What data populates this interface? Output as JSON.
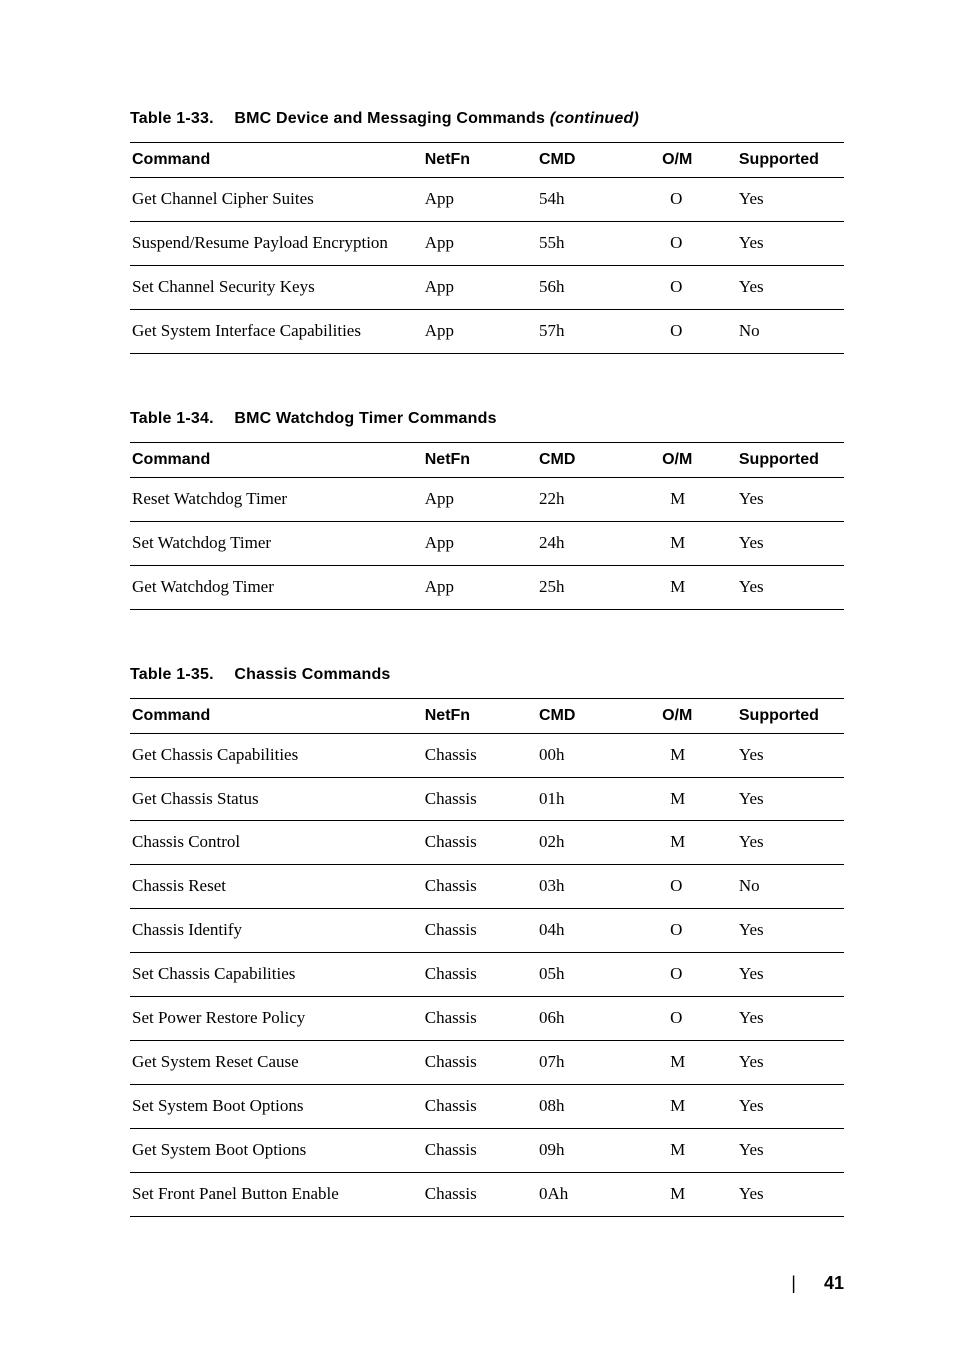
{
  "tables": [
    {
      "number": "Table 1-33.",
      "title": "BMC Device and Messaging Commands",
      "continued": "(continued)",
      "columns": [
        "Command",
        "NetFn",
        "CMD",
        "O/M",
        "Supported"
      ],
      "rows": [
        [
          "Get Channel Cipher Suites",
          "App",
          "54h",
          "O",
          "Yes"
        ],
        [
          "Suspend/Resume Payload Encryption",
          "App",
          "55h",
          "O",
          "Yes"
        ],
        [
          "Set Channel Security Keys",
          "App",
          "56h",
          "O",
          "Yes"
        ],
        [
          "Get System Interface Capabilities",
          "App",
          "57h",
          "O",
          "No"
        ]
      ]
    },
    {
      "number": "Table 1-34.",
      "title": "BMC Watchdog Timer Commands",
      "continued": "",
      "columns": [
        "Command",
        "NetFn",
        "CMD",
        "O/M",
        "Supported"
      ],
      "rows": [
        [
          "Reset Watchdog Timer",
          "App",
          "22h",
          "M",
          "Yes"
        ],
        [
          "Set Watchdog Timer",
          "App",
          "24h",
          "M",
          "Yes"
        ],
        [
          "Get Watchdog Timer",
          "App",
          "25h",
          "M",
          "Yes"
        ]
      ]
    },
    {
      "number": "Table 1-35.",
      "title": "Chassis Commands",
      "continued": "",
      "columns": [
        "Command",
        "NetFn",
        "CMD",
        "O/M",
        "Supported"
      ],
      "rows": [
        [
          "Get Chassis Capabilities",
          "Chassis",
          "00h",
          "M",
          "Yes"
        ],
        [
          "Get Chassis Status",
          "Chassis",
          "01h",
          "M",
          "Yes"
        ],
        [
          "Chassis Control",
          "Chassis",
          "02h",
          "M",
          "Yes"
        ],
        [
          "Chassis Reset",
          "Chassis",
          "03h",
          "O",
          "No"
        ],
        [
          "Chassis Identify",
          "Chassis",
          "04h",
          "O",
          "Yes"
        ],
        [
          "Set Chassis Capabilities",
          "Chassis",
          "05h",
          "O",
          "Yes"
        ],
        [
          "Set Power Restore Policy",
          "Chassis",
          "06h",
          "O",
          "Yes"
        ],
        [
          "Get System Reset Cause",
          "Chassis",
          "07h",
          "M",
          "Yes"
        ],
        [
          "Set System Boot Options",
          "Chassis",
          "08h",
          "M",
          "Yes"
        ],
        [
          "Get System Boot Options",
          "Chassis",
          "09h",
          "M",
          "Yes"
        ],
        [
          "Set Front Panel Button Enable",
          "Chassis",
          "0Ah",
          "M",
          "Yes"
        ]
      ]
    }
  ],
  "page_number": "41"
}
